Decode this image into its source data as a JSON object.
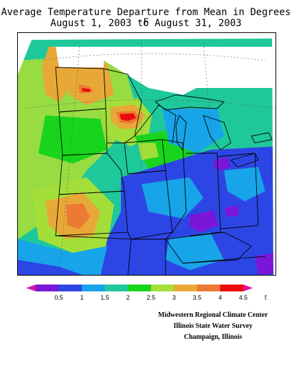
{
  "title": {
    "line1": "Average Temperature Departure from Mean in Degrees F",
    "line2": "August 1, 2003 to August 31, 2003"
  },
  "legend": {
    "ticks": [
      "0.5",
      "1",
      "1.5",
      "2",
      "2.5",
      "3",
      "3.5",
      "4",
      "4.5",
      "5"
    ],
    "colors": [
      "#d21aa3",
      "#7a16d8",
      "#2c46e6",
      "#18a4e8",
      "#1ec89a",
      "#18d41c",
      "#a4de38",
      "#e8a838",
      "#ec7a32",
      "#ee0a0a",
      "#e0109a"
    ]
  },
  "credits": {
    "line1": "Midwestern Regional Climate Center",
    "line2": "Illinois State Water Survey",
    "line3": "Champaign, Illinois"
  },
  "map": {
    "region": "Upper Midwest",
    "palette": {
      "cool": "#2c46e6",
      "light_blue": "#18a4e8",
      "teal": "#1ec89a",
      "green": "#18d41c",
      "yellow_green": "#a4de38",
      "orange": "#e8a838",
      "dark_orange": "#ec7a32",
      "red": "#ee0a0a",
      "purple": "#7a16d8",
      "magenta": "#d21aa3"
    }
  }
}
